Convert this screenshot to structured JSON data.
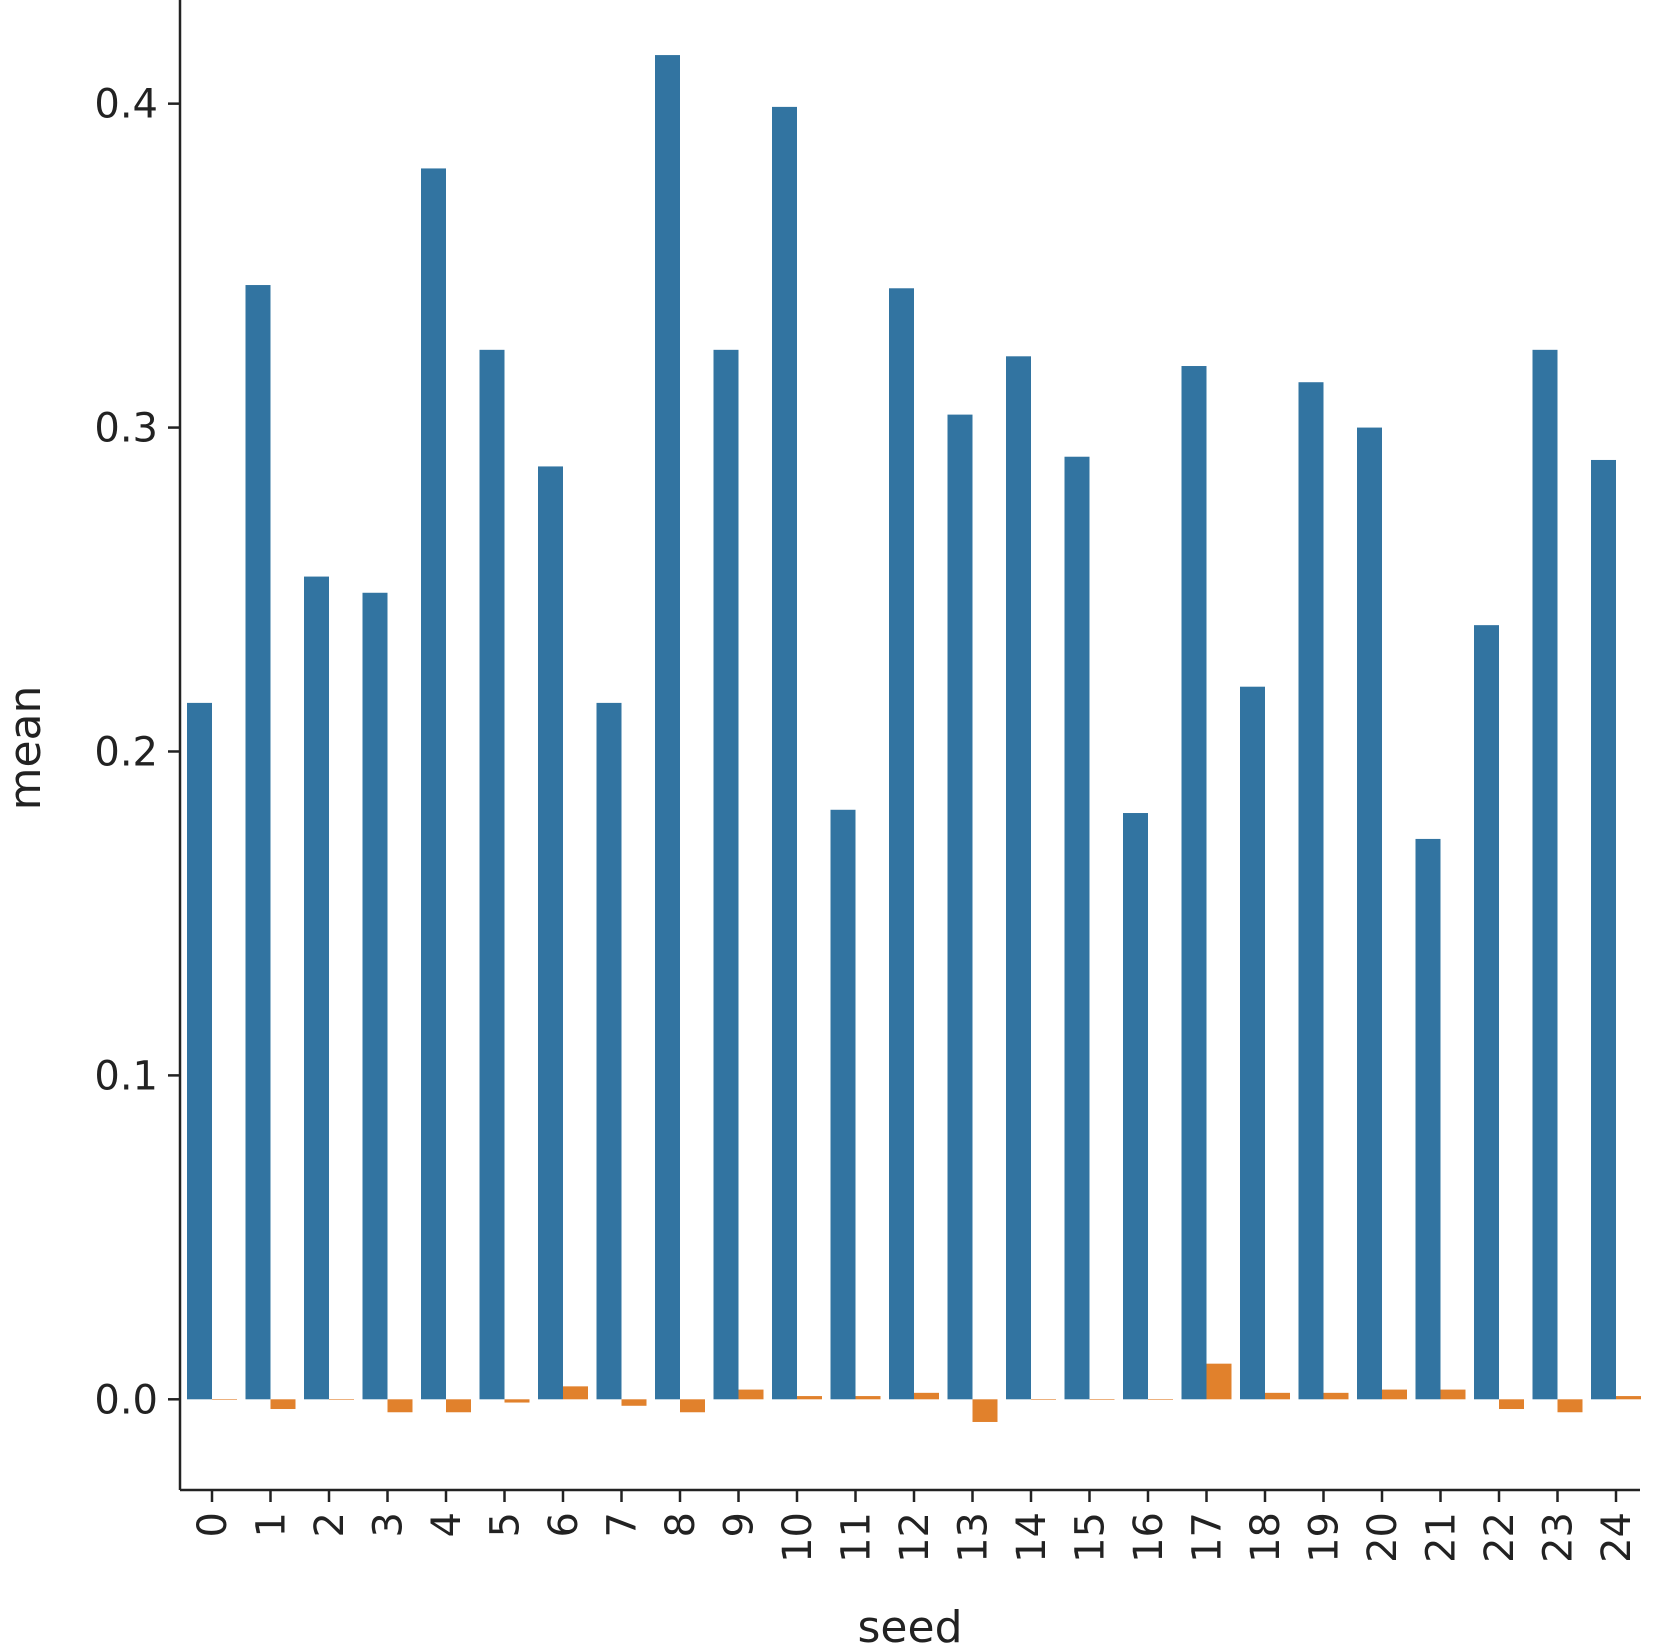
{
  "chart_data": {
    "type": "bar",
    "xlabel": "seed",
    "ylabel": "mean",
    "categories": [
      "0",
      "1",
      "2",
      "3",
      "4",
      "5",
      "6",
      "7",
      "8",
      "9",
      "10",
      "11",
      "12",
      "13",
      "14",
      "15",
      "16",
      "17",
      "18",
      "19",
      "20",
      "21",
      "22",
      "23",
      "24"
    ],
    "ylim": [
      -0.028,
      0.432
    ],
    "yticks": [
      "0.0",
      "0.1",
      "0.2",
      "0.3",
      "0.4"
    ],
    "ytick_values": [
      0.0,
      0.1,
      0.2,
      0.3,
      0.4
    ],
    "grid": false,
    "legend": "none",
    "series": [
      {
        "color": "#3274a1",
        "values": [
          0.215,
          0.344,
          0.254,
          0.249,
          0.38,
          0.324,
          0.288,
          0.215,
          0.415,
          0.324,
          0.399,
          0.182,
          0.343,
          0.304,
          0.322,
          0.291,
          0.181,
          0.319,
          0.22,
          0.314,
          0.3,
          0.173,
          0.239,
          0.324,
          0.29
        ]
      },
      {
        "color": "#e1812c",
        "values": [
          0.0,
          -0.003,
          0.0,
          -0.004,
          -0.004,
          -0.001,
          0.004,
          -0.002,
          -0.004,
          0.003,
          0.001,
          0.001,
          0.002,
          -0.007,
          0.0,
          0.0,
          0.0,
          0.011,
          0.002,
          0.002,
          0.003,
          0.003,
          -0.003,
          -0.004,
          0.001
        ]
      }
    ]
  }
}
